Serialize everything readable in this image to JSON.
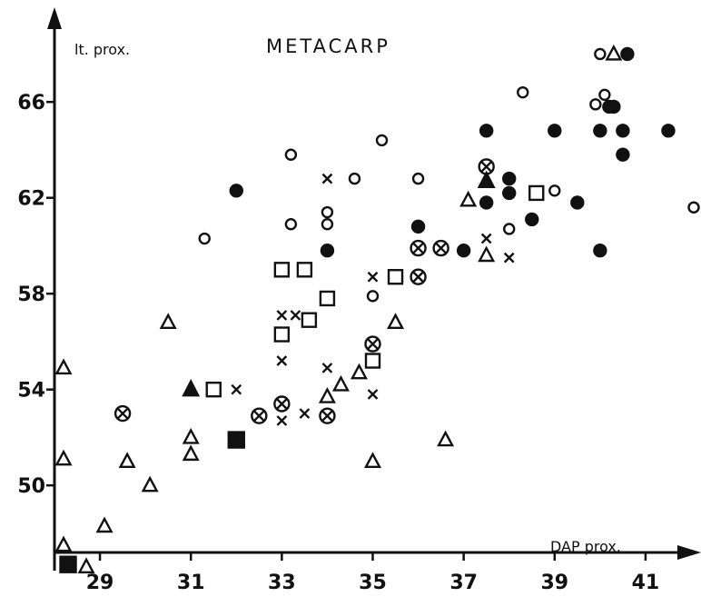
{
  "chart_data": {
    "type": "scatter",
    "title": "METACARP",
    "xlabel": "DAP prox.",
    "ylabel": "lt. prox.",
    "xlim": [
      28,
      42.1
    ],
    "ylim": [
      47.2,
      69.8
    ],
    "x_ticks": [
      29,
      31,
      33,
      35,
      37,
      39,
      41
    ],
    "y_ticks": [
      50,
      54,
      58,
      62,
      66
    ],
    "grid": false,
    "legend": "none",
    "series": [
      {
        "marker": "filled-circle",
        "points": [
          [
            32,
            62.3
          ],
          [
            34,
            59.8
          ],
          [
            36,
            60.8
          ],
          [
            37,
            59.8
          ],
          [
            37.5,
            61.8
          ],
          [
            37.5,
            64.8
          ],
          [
            38,
            62.8
          ],
          [
            38,
            62.2
          ],
          [
            38.5,
            61.1
          ],
          [
            39,
            64.8
          ],
          [
            39.5,
            61.8
          ],
          [
            40,
            64.8
          ],
          [
            40,
            59.8
          ],
          [
            40.2,
            65.8
          ],
          [
            40.3,
            65.8
          ],
          [
            40.5,
            64.8
          ],
          [
            40.5,
            63.8
          ],
          [
            40.6,
            68
          ],
          [
            41.5,
            64.8
          ]
        ]
      },
      {
        "marker": "open-circle",
        "points": [
          [
            31.3,
            60.3
          ],
          [
            33.2,
            63.8
          ],
          [
            33.2,
            60.9
          ],
          [
            34,
            61.4
          ],
          [
            34,
            60.9
          ],
          [
            34.6,
            62.8
          ],
          [
            35.2,
            64.4
          ],
          [
            35,
            57.9
          ],
          [
            36,
            62.8
          ],
          [
            38,
            60.7
          ],
          [
            38.3,
            66.4
          ],
          [
            39,
            62.3
          ],
          [
            39.9,
            65.9
          ],
          [
            40,
            68
          ],
          [
            40.1,
            66.3
          ],
          [
            42.1,
            61.6
          ]
        ]
      },
      {
        "marker": "open-triangle",
        "points": [
          [
            28.2,
            47.5
          ],
          [
            28.2,
            51.1
          ],
          [
            28.2,
            54.9
          ],
          [
            28.7,
            46.6
          ],
          [
            29.1,
            48.3
          ],
          [
            29.6,
            51
          ],
          [
            30.1,
            50
          ],
          [
            30.5,
            56.8
          ],
          [
            31,
            52
          ],
          [
            31,
            51.3
          ],
          [
            34,
            53.7
          ],
          [
            34.3,
            54.2
          ],
          [
            34.7,
            54.7
          ],
          [
            35,
            51
          ],
          [
            35.5,
            56.8
          ],
          [
            36.6,
            51.9
          ],
          [
            37.1,
            61.9
          ],
          [
            37.5,
            59.6
          ],
          [
            40.3,
            68
          ]
        ]
      },
      {
        "marker": "filled-triangle",
        "points": [
          [
            31,
            54
          ],
          [
            37.5,
            62.7
          ]
        ]
      },
      {
        "marker": "open-square",
        "points": [
          [
            31.5,
            54
          ],
          [
            33,
            59
          ],
          [
            33,
            56.3
          ],
          [
            33.5,
            59
          ],
          [
            33.6,
            56.9
          ],
          [
            34,
            57.8
          ],
          [
            35,
            55.2
          ],
          [
            35.5,
            58.7
          ],
          [
            38.6,
            62.2
          ]
        ]
      },
      {
        "marker": "filled-square",
        "points": [
          [
            28.3,
            46.7
          ],
          [
            32,
            51.9
          ]
        ]
      },
      {
        "marker": "cross",
        "points": [
          [
            32,
            54
          ],
          [
            33,
            57.1
          ],
          [
            33,
            55.2
          ],
          [
            33,
            52.7
          ],
          [
            33.3,
            57.1
          ],
          [
            33.5,
            53
          ],
          [
            34,
            62.8
          ],
          [
            34,
            54.9
          ],
          [
            35,
            58.7
          ],
          [
            35,
            53.8
          ],
          [
            37.5,
            60.3
          ],
          [
            38,
            59.5
          ]
        ]
      },
      {
        "marker": "circled-cross",
        "points": [
          [
            29.5,
            53
          ],
          [
            32.5,
            52.9
          ],
          [
            33,
            53.4
          ],
          [
            34,
            52.9
          ],
          [
            35,
            55.9
          ],
          [
            36,
            59.9
          ],
          [
            36,
            58.7
          ],
          [
            36.5,
            59.9
          ],
          [
            37.5,
            63.3
          ]
        ]
      }
    ]
  }
}
